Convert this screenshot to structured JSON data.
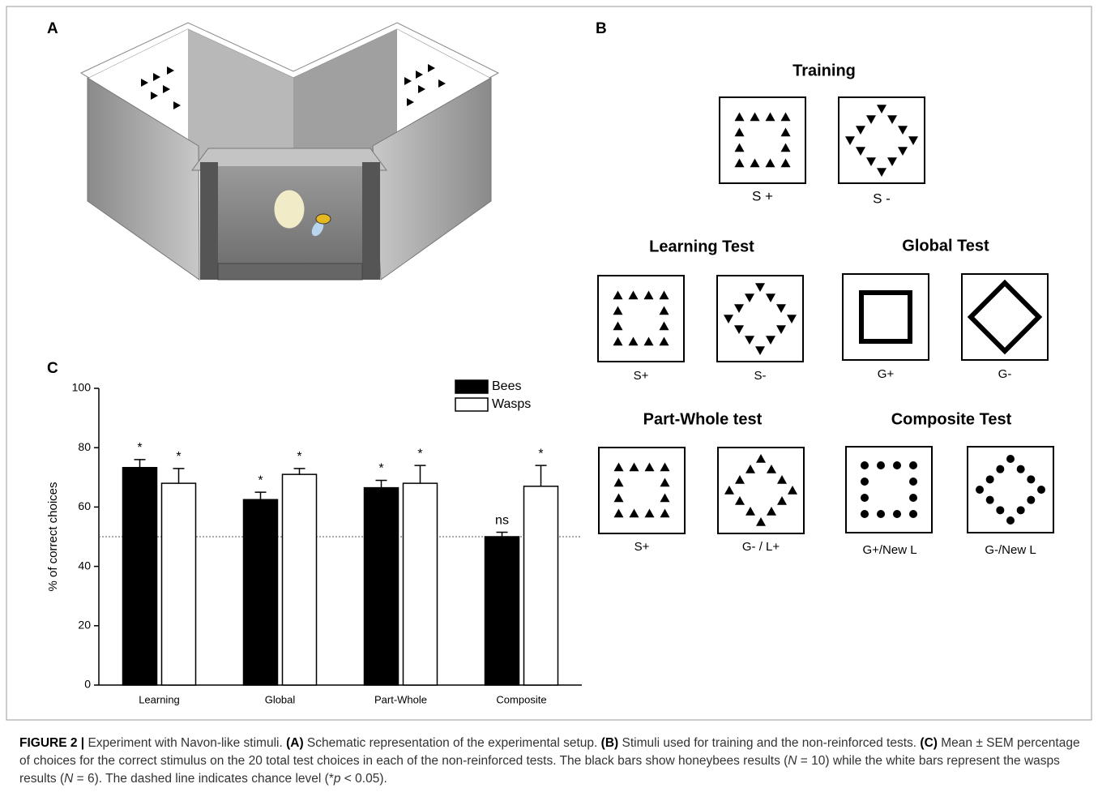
{
  "panel_labels": [
    "A",
    "B",
    "C"
  ],
  "panel_b": {
    "groups": [
      {
        "title": "Training",
        "stimuli": [
          "S +",
          "S -"
        ]
      },
      {
        "title": "Learning Test",
        "stimuli": [
          "S+",
          "S-"
        ]
      },
      {
        "title": "Global Test",
        "stimuli": [
          "G+",
          "G-"
        ]
      },
      {
        "title": "Part-Whole test",
        "stimuli": [
          "S+",
          "G- / L+"
        ]
      },
      {
        "title": "Composite Test",
        "stimuli": [
          "G+/New L",
          "G-/New L"
        ]
      }
    ]
  },
  "chart_data": {
    "type": "bar",
    "y_label": "% of correct choices",
    "categories": [
      "Learning",
      "Global",
      "Part-Whole",
      "Composite"
    ],
    "series": [
      {
        "name": "Bees",
        "color": "#000000",
        "values": [
          73.3,
          62.5,
          66.5,
          50
        ],
        "errors": [
          2.7,
          2.5,
          2.5,
          1.5
        ],
        "annotations": [
          "*",
          "*",
          "*",
          "ns"
        ]
      },
      {
        "name": "Wasps",
        "color": "#ffffff",
        "values": [
          68,
          71,
          68,
          67
        ],
        "errors": [
          5,
          2,
          6,
          7
        ],
        "annotations": [
          "*",
          "*",
          "*",
          "*"
        ]
      }
    ],
    "ylim": [
      0,
      100
    ],
    "yticks": [
      0,
      20,
      40,
      60,
      80,
      100
    ],
    "reference_line": 50,
    "legend": "upper right"
  },
  "caption": [
    "FIGURE 2 |",
    " Experiment with Navon-like stimuli. ",
    "(A)",
    " Schematic representation of the experimental setup. ",
    "(B)",
    " Stimuli used for training and the non-reinforced tests. ",
    "(C)",
    " Mean ± SEM percentage of choices for the correct stimulus on the 20 total test choices in each of the non-reinforced tests. The black bars show honeybees results (",
    "N",
    " = 10) while the white bars represent the wasps results (",
    "N",
    " = 6). The dashed line indicates chance level (*",
    "p",
    " < 0.05)."
  ]
}
